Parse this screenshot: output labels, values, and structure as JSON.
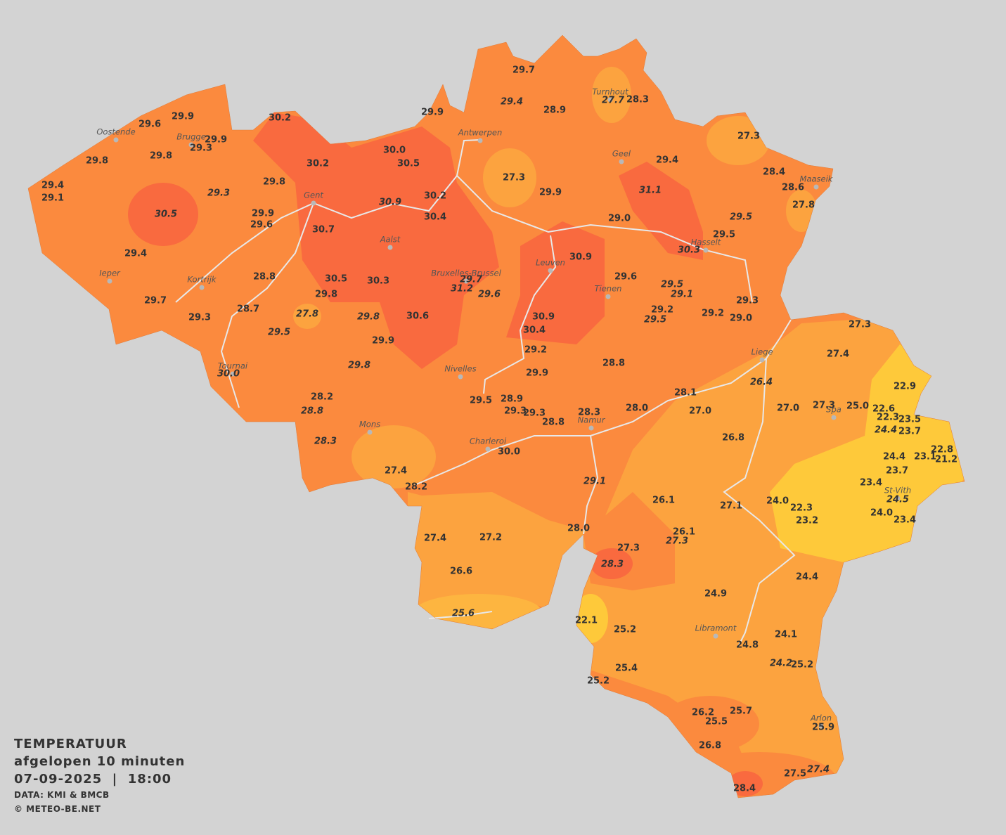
{
  "legend": {
    "title": "TEMPERATUUR",
    "subtitle": "afgelopen 10 minuten",
    "datetime": "07-09-2025  |  18:00",
    "source": "DATA: KMI & BMCB",
    "copyright": "© METEO-BE.NET"
  },
  "cities": [
    "Oostende",
    "Brugge",
    "Gent",
    "Antwerpen",
    "Turnhout",
    "Geel",
    "Maaseik",
    "Aalst",
    "Hasselt",
    "Leuven",
    "Ieper",
    "Kortrijk",
    "Bruxelles-Brussel",
    "Tienen",
    "Liege",
    "Tournai",
    "Nivelles",
    "Spa",
    "Mons",
    "Namur",
    "Charleroi",
    "St-Vith",
    "Libramont",
    "Arlon"
  ],
  "readings": [
    "29.7",
    "29.4",
    "28.9",
    "27.7",
    "28.3",
    "29.9",
    "29.6",
    "30.2",
    "29.9",
    "29.9",
    "29.3",
    "30.0",
    "30.5",
    "30.2",
    "27.3",
    "29.8",
    "29.8",
    "29.4",
    "28.4",
    "28.6",
    "27.3",
    "29.4",
    "29.1",
    "29.3",
    "29.8",
    "29.9",
    "31.1",
    "30.2",
    "30.9",
    "27.8",
    "30.5",
    "29.9",
    "29.6",
    "30.4",
    "29.0",
    "29.5",
    "30.7",
    "29.5",
    "30.3",
    "29.4",
    "30.9",
    "28.8",
    "30.5",
    "30.3",
    "29.7",
    "29.6",
    "29.5",
    "31.2",
    "29.8",
    "29.6",
    "29.1",
    "29.7",
    "28.7",
    "27.8",
    "29.8",
    "30.6",
    "30.9",
    "29.2",
    "29.2",
    "29.3",
    "29.3",
    "29.5",
    "29.0",
    "30.4",
    "27.3",
    "29.5",
    "29.9",
    "29.2",
    "27.4",
    "29.8",
    "28.8",
    "30.0",
    "29.9",
    "26.4",
    "22.9",
    "28.1",
    "28.2",
    "29.5",
    "28.9",
    "27.0",
    "27.3",
    "25.0",
    "22.6",
    "28.8",
    "29.3",
    "29.3",
    "28.0",
    "28.3",
    "27.0",
    "22.3",
    "23.5",
    "28.8",
    "24.4",
    "23.7",
    "28.3",
    "26.8",
    "30.0",
    "22.8",
    "23.1",
    "24.4",
    "21.2",
    "27.4",
    "23.7",
    "29.1",
    "23.4",
    "28.2",
    "24.0",
    "26.1",
    "27.1",
    "24.5",
    "22.3",
    "24.0",
    "23.2",
    "23.4",
    "28.0",
    "26.1",
    "27.3",
    "27.4",
    "27.2",
    "27.3",
    "28.3",
    "26.6",
    "24.4",
    "24.9",
    "25.6",
    "22.1",
    "25.2",
    "24.1",
    "24.8",
    "24.2",
    "25.2",
    "25.4",
    "25.2",
    "25.7",
    "26.2",
    "25.5",
    "25.9",
    "26.8",
    "27.4",
    "27.5",
    "28.4"
  ]
}
